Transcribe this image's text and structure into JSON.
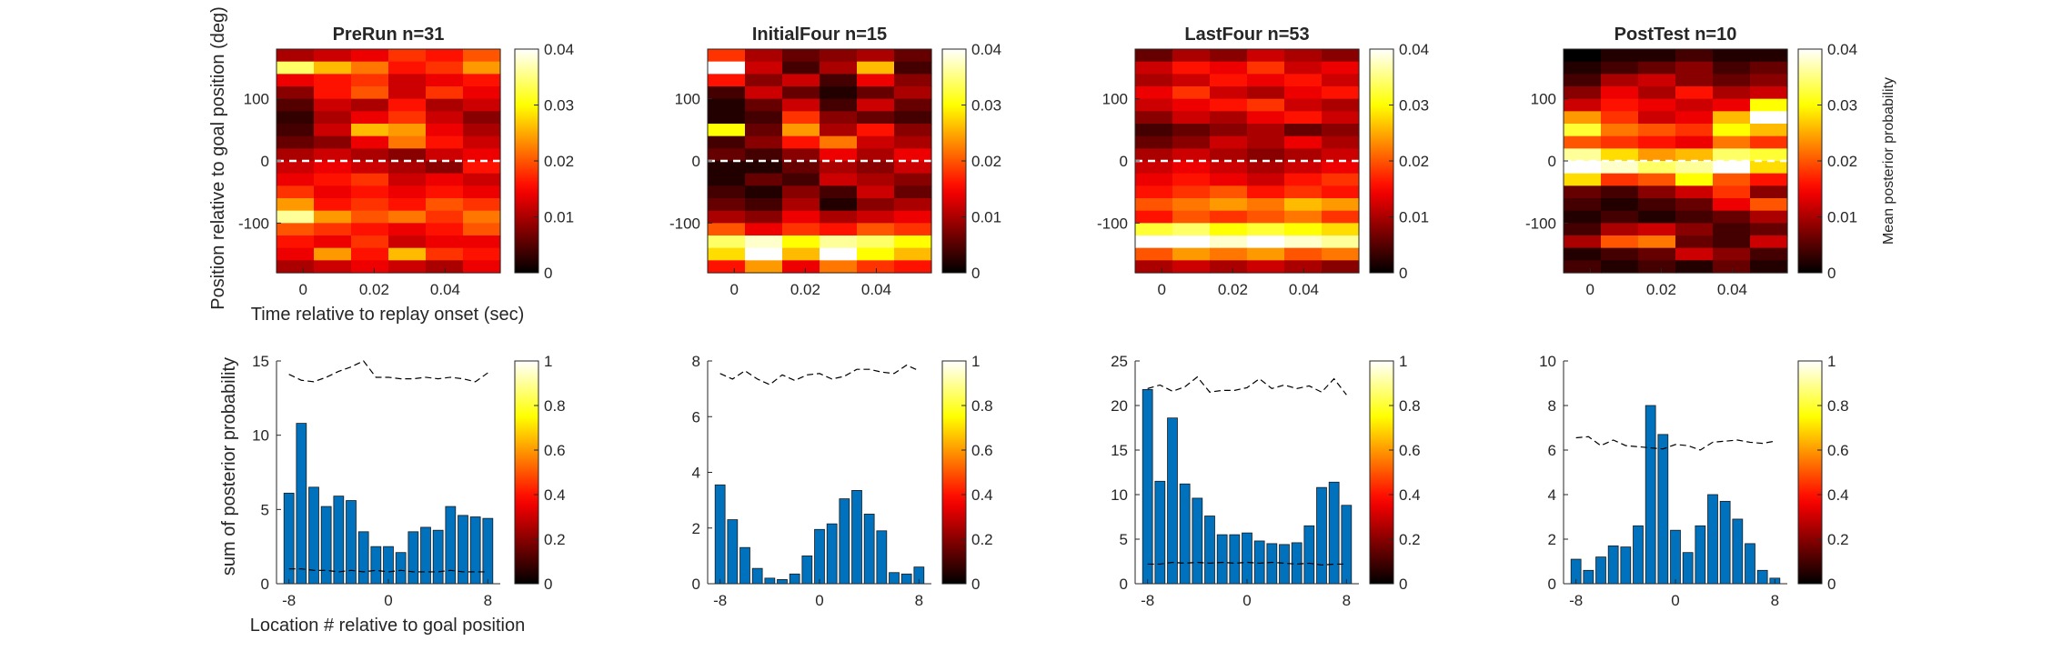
{
  "figure": {
    "heat_ylabel": "Position relative to goal position (deg)",
    "heat_xlabel": "Time relative to replay onset (sec)",
    "bar_ylabel": "sum of posterior probability",
    "bar_xlabel": "Location # relative to goal position",
    "heat_colorbar_label": "Mean posterior probability"
  },
  "colormap": "hot",
  "chart_data": [
    {
      "type": "heatmap",
      "title": "PreRun n=31",
      "x_ticks": [
        "0",
        "0.02",
        "0.04"
      ],
      "y_ticks": [
        "100",
        "0",
        "-100"
      ],
      "xlim": [
        -0.0075,
        0.0555
      ],
      "ylim": [
        -180,
        180
      ],
      "x_bins": [
        0,
        0.01,
        0.02,
        0.03,
        0.04,
        0.05
      ],
      "y_bin_centers": [
        170,
        150,
        130,
        110,
        90,
        70,
        50,
        30,
        10,
        -10,
        -30,
        -50,
        -70,
        -90,
        -110,
        -130,
        -150,
        -170
      ],
      "values": [
        [
          0.01,
          0.012,
          0.014,
          0.018,
          0.016,
          0.02
        ],
        [
          0.034,
          0.026,
          0.022,
          0.016,
          0.018,
          0.024
        ],
        [
          0.014,
          0.016,
          0.018,
          0.012,
          0.014,
          0.016
        ],
        [
          0.008,
          0.016,
          0.02,
          0.012,
          0.018,
          0.014
        ],
        [
          0.005,
          0.012,
          0.01,
          0.016,
          0.01,
          0.012
        ],
        [
          0.003,
          0.01,
          0.014,
          0.018,
          0.012,
          0.008
        ],
        [
          0.004,
          0.012,
          0.026,
          0.024,
          0.014,
          0.01
        ],
        [
          0.006,
          0.008,
          0.014,
          0.022,
          0.016,
          0.012
        ],
        [
          0.01,
          0.012,
          0.01,
          0.008,
          0.012,
          0.014
        ],
        [
          0.012,
          0.014,
          0.012,
          0.01,
          0.008,
          0.016
        ],
        [
          0.014,
          0.016,
          0.018,
          0.012,
          0.014,
          0.012
        ],
        [
          0.018,
          0.014,
          0.016,
          0.014,
          0.016,
          0.014
        ],
        [
          0.024,
          0.016,
          0.018,
          0.016,
          0.02,
          0.018
        ],
        [
          0.036,
          0.024,
          0.02,
          0.022,
          0.018,
          0.022
        ],
        [
          0.02,
          0.018,
          0.016,
          0.014,
          0.016,
          0.02
        ],
        [
          0.016,
          0.014,
          0.018,
          0.012,
          0.014,
          0.014
        ],
        [
          0.014,
          0.024,
          0.016,
          0.026,
          0.018,
          0.016
        ],
        [
          0.01,
          0.012,
          0.014,
          0.012,
          0.01,
          0.014
        ]
      ],
      "zlim": [
        0,
        0.04
      ],
      "colorbar_ticks": [
        "0",
        "0.01",
        "0.02",
        "0.03",
        "0.04"
      ],
      "reference_line_y": 0
    },
    {
      "type": "heatmap",
      "title": "InitialFour n=15",
      "x_ticks": [
        "0",
        "0.02",
        "0.04"
      ],
      "y_ticks": [
        "100",
        "0",
        "-100"
      ],
      "xlim": [
        -0.0075,
        0.0555
      ],
      "ylim": [
        -180,
        180
      ],
      "x_bins": [
        0,
        0.01,
        0.02,
        0.03,
        0.04,
        0.05
      ],
      "y_bin_centers": [
        170,
        150,
        130,
        110,
        90,
        70,
        50,
        30,
        10,
        -10,
        -30,
        -50,
        -70,
        -90,
        -110,
        -130,
        -150,
        -170
      ],
      "values": [
        [
          0.018,
          0.01,
          0.006,
          0.008,
          0.01,
          0.006
        ],
        [
          0.04,
          0.012,
          0.004,
          0.01,
          0.026,
          0.004
        ],
        [
          0.016,
          0.008,
          0.012,
          0.004,
          0.014,
          0.008
        ],
        [
          0.004,
          0.012,
          0.006,
          0.002,
          0.006,
          0.01
        ],
        [
          0.002,
          0.006,
          0.012,
          0.004,
          0.012,
          0.006
        ],
        [
          0.002,
          0.004,
          0.018,
          0.008,
          0.006,
          0.004
        ],
        [
          0.03,
          0.006,
          0.024,
          0.01,
          0.016,
          0.008
        ],
        [
          0.004,
          0.008,
          0.016,
          0.022,
          0.012,
          0.01
        ],
        [
          0.006,
          0.004,
          0.008,
          0.014,
          0.01,
          0.014
        ],
        [
          0.002,
          0.002,
          0.006,
          0.01,
          0.008,
          0.012
        ],
        [
          0.002,
          0.006,
          0.004,
          0.012,
          0.01,
          0.008
        ],
        [
          0.004,
          0.002,
          0.008,
          0.004,
          0.012,
          0.006
        ],
        [
          0.006,
          0.004,
          0.01,
          0.002,
          0.008,
          0.01
        ],
        [
          0.01,
          0.008,
          0.014,
          0.01,
          0.012,
          0.014
        ],
        [
          0.02,
          0.014,
          0.018,
          0.016,
          0.02,
          0.018
        ],
        [
          0.034,
          0.038,
          0.03,
          0.036,
          0.034,
          0.03
        ],
        [
          0.028,
          0.04,
          0.026,
          0.04,
          0.03,
          0.026
        ],
        [
          0.016,
          0.024,
          0.014,
          0.022,
          0.018,
          0.016
        ]
      ],
      "zlim": [
        0,
        0.04
      ],
      "colorbar_ticks": [
        "0",
        "0.01",
        "0.02",
        "0.03",
        "0.04"
      ],
      "reference_line_y": 0
    },
    {
      "type": "heatmap",
      "title": "LastFour n=53",
      "x_ticks": [
        "0",
        "0.02",
        "0.04"
      ],
      "y_ticks": [
        "100",
        "0",
        "-100"
      ],
      "xlim": [
        -0.0075,
        0.0555
      ],
      "ylim": [
        -180,
        180
      ],
      "x_bins": [
        0,
        0.01,
        0.02,
        0.03,
        0.04,
        0.05
      ],
      "y_bin_centers": [
        170,
        150,
        130,
        110,
        90,
        70,
        50,
        30,
        10,
        -10,
        -30,
        -50,
        -70,
        -90,
        -110,
        -130,
        -150,
        -170
      ],
      "values": [
        [
          0.006,
          0.01,
          0.008,
          0.012,
          0.01,
          0.008
        ],
        [
          0.012,
          0.016,
          0.014,
          0.018,
          0.012,
          0.014
        ],
        [
          0.01,
          0.012,
          0.016,
          0.014,
          0.016,
          0.012
        ],
        [
          0.014,
          0.018,
          0.012,
          0.01,
          0.014,
          0.016
        ],
        [
          0.012,
          0.014,
          0.016,
          0.018,
          0.012,
          0.01
        ],
        [
          0.008,
          0.012,
          0.01,
          0.014,
          0.016,
          0.012
        ],
        [
          0.004,
          0.006,
          0.008,
          0.01,
          0.006,
          0.008
        ],
        [
          0.006,
          0.008,
          0.012,
          0.01,
          0.014,
          0.01
        ],
        [
          0.01,
          0.012,
          0.01,
          0.008,
          0.01,
          0.012
        ],
        [
          0.012,
          0.014,
          0.012,
          0.01,
          0.012,
          0.014
        ],
        [
          0.014,
          0.016,
          0.014,
          0.012,
          0.016,
          0.018
        ],
        [
          0.016,
          0.018,
          0.02,
          0.016,
          0.018,
          0.016
        ],
        [
          0.02,
          0.022,
          0.024,
          0.022,
          0.026,
          0.024
        ],
        [
          0.016,
          0.02,
          0.018,
          0.02,
          0.022,
          0.018
        ],
        [
          0.032,
          0.034,
          0.03,
          0.032,
          0.03,
          0.028
        ],
        [
          0.04,
          0.04,
          0.038,
          0.04,
          0.038,
          0.036
        ],
        [
          0.02,
          0.024,
          0.022,
          0.024,
          0.02,
          0.022
        ],
        [
          0.01,
          0.012,
          0.01,
          0.012,
          0.01,
          0.008
        ]
      ],
      "zlim": [
        0,
        0.04
      ],
      "colorbar_ticks": [
        "0",
        "0.01",
        "0.02",
        "0.03",
        "0.04"
      ],
      "reference_line_y": 0
    },
    {
      "type": "heatmap",
      "title": "PostTest n=10",
      "x_ticks": [
        "0",
        "0.02",
        "0.04"
      ],
      "y_ticks": [
        "100",
        "0",
        "-100"
      ],
      "xlim": [
        -0.0075,
        0.0555
      ],
      "ylim": [
        -180,
        180
      ],
      "x_bins": [
        0,
        0.01,
        0.02,
        0.03,
        0.04,
        0.05
      ],
      "y_bin_centers": [
        170,
        150,
        130,
        110,
        90,
        70,
        50,
        30,
        10,
        -10,
        -30,
        -50,
        -70,
        -90,
        -110,
        -130,
        -150,
        -170
      ],
      "values": [
        [
          0.0,
          0.002,
          0.002,
          0.004,
          0.002,
          0.002
        ],
        [
          0.002,
          0.004,
          0.006,
          0.008,
          0.004,
          0.006
        ],
        [
          0.004,
          0.01,
          0.012,
          0.008,
          0.006,
          0.008
        ],
        [
          0.008,
          0.014,
          0.01,
          0.016,
          0.01,
          0.012
        ],
        [
          0.012,
          0.016,
          0.014,
          0.012,
          0.014,
          0.03
        ],
        [
          0.024,
          0.018,
          0.012,
          0.014,
          0.026,
          0.04
        ],
        [
          0.032,
          0.022,
          0.02,
          0.018,
          0.03,
          0.026
        ],
        [
          0.02,
          0.018,
          0.016,
          0.014,
          0.022,
          0.018
        ],
        [
          0.036,
          0.028,
          0.024,
          0.026,
          0.034,
          0.032
        ],
        [
          0.04,
          0.038,
          0.034,
          0.036,
          0.04,
          0.028
        ],
        [
          0.028,
          0.018,
          0.02,
          0.03,
          0.02,
          0.016
        ],
        [
          0.006,
          0.004,
          0.008,
          0.012,
          0.018,
          0.008
        ],
        [
          0.004,
          0.002,
          0.004,
          0.006,
          0.014,
          0.02
        ],
        [
          0.002,
          0.004,
          0.002,
          0.004,
          0.006,
          0.01
        ],
        [
          0.004,
          0.01,
          0.012,
          0.008,
          0.004,
          0.006
        ],
        [
          0.01,
          0.02,
          0.022,
          0.006,
          0.004,
          0.012
        ],
        [
          0.002,
          0.004,
          0.006,
          0.012,
          0.008,
          0.004
        ],
        [
          0.004,
          0.002,
          0.004,
          0.002,
          0.006,
          0.002
        ]
      ],
      "zlim": [
        0,
        0.04
      ],
      "colorbar_ticks": [
        "0",
        "0.01",
        "0.02",
        "0.03",
        "0.04"
      ],
      "reference_line_y": 0,
      "colorbar_label": "Mean posterior probability"
    },
    {
      "type": "bar",
      "x": [
        -8,
        -7,
        -6,
        -5,
        -4,
        -3,
        -2,
        -1,
        0,
        1,
        2,
        3,
        4,
        5,
        6,
        7,
        8
      ],
      "values": [
        6.1,
        10.8,
        6.5,
        5.2,
        5.9,
        5.6,
        3.5,
        2.5,
        2.5,
        2.1,
        3.5,
        3.8,
        3.6,
        5.2,
        4.6,
        4.5,
        4.4
      ],
      "upper_line": [
        14.1,
        13.7,
        13.6,
        13.9,
        14.3,
        14.6,
        15.0,
        13.9,
        13.9,
        13.8,
        13.8,
        13.9,
        13.8,
        13.9,
        13.8,
        13.6,
        14.2
      ],
      "lower_line": [
        1.0,
        1.0,
        0.9,
        0.9,
        0.8,
        0.9,
        0.8,
        0.9,
        0.8,
        0.9,
        0.8,
        0.8,
        0.8,
        0.9,
        0.8,
        0.8,
        0.8
      ],
      "x_ticks": [
        "-8",
        "0",
        "8"
      ],
      "y_ticks": [
        "0",
        "5",
        "10",
        "15"
      ],
      "xlim": [
        -9,
        9
      ],
      "ylim": [
        0,
        15
      ],
      "bar_color": "#0072BD",
      "colorbar_ticks": [
        "0",
        "0.2",
        "0.4",
        "0.6",
        "0.8",
        "1"
      ]
    },
    {
      "type": "bar",
      "x": [
        -8,
        -7,
        -6,
        -5,
        -4,
        -3,
        -2,
        -1,
        0,
        1,
        2,
        3,
        4,
        5,
        6,
        7,
        8
      ],
      "values": [
        3.55,
        2.3,
        1.3,
        0.55,
        0.2,
        0.15,
        0.35,
        1.0,
        1.95,
        2.15,
        3.05,
        3.35,
        2.5,
        1.9,
        0.4,
        0.35,
        0.6
      ],
      "upper_line": [
        7.55,
        7.35,
        7.65,
        7.35,
        7.15,
        7.5,
        7.3,
        7.5,
        7.55,
        7.35,
        7.45,
        7.7,
        7.7,
        7.6,
        7.55,
        7.85,
        7.65
      ],
      "x_ticks": [
        "-8",
        "0",
        "8"
      ],
      "y_ticks": [
        "0",
        "2",
        "4",
        "6",
        "8"
      ],
      "xlim": [
        -9,
        9
      ],
      "ylim": [
        0,
        8
      ],
      "bar_color": "#0072BD",
      "colorbar_ticks": [
        "0",
        "0.2",
        "0.4",
        "0.6",
        "0.8",
        "1"
      ]
    },
    {
      "type": "bar",
      "x": [
        -8,
        -7,
        -6,
        -5,
        -4,
        -3,
        -2,
        -1,
        0,
        1,
        2,
        3,
        4,
        5,
        6,
        7,
        8
      ],
      "values": [
        21.8,
        11.5,
        18.6,
        11.2,
        9.6,
        7.6,
        5.5,
        5.5,
        5.7,
        4.8,
        4.5,
        4.4,
        4.6,
        6.5,
        10.8,
        11.4,
        8.8
      ],
      "upper_line": [
        21.9,
        22.3,
        21.6,
        22.1,
        23.2,
        21.5,
        21.7,
        21.7,
        22.0,
        23.0,
        21.9,
        22.3,
        21.9,
        22.2,
        21.5,
        23.0,
        21.2
      ],
      "lower_line": [
        2.2,
        2.2,
        2.4,
        2.3,
        2.4,
        2.3,
        2.4,
        2.3,
        2.4,
        2.3,
        2.4,
        2.3,
        2.2,
        2.3,
        2.1,
        2.2,
        2.2
      ],
      "x_ticks": [
        "-8",
        "0",
        "8"
      ],
      "y_ticks": [
        "0",
        "5",
        "10",
        "15",
        "20",
        "25"
      ],
      "xlim": [
        -9,
        9
      ],
      "ylim": [
        0,
        25
      ],
      "bar_color": "#0072BD",
      "colorbar_ticks": [
        "0",
        "0.2",
        "0.4",
        "0.6",
        "0.8",
        "1"
      ]
    },
    {
      "type": "bar",
      "x": [
        -8,
        -7,
        -6,
        -5,
        -4,
        -3,
        -2,
        -1,
        0,
        1,
        2,
        3,
        4,
        5,
        6,
        7,
        8
      ],
      "values": [
        1.1,
        0.6,
        1.2,
        1.7,
        1.65,
        2.6,
        8.0,
        6.7,
        2.4,
        1.4,
        2.6,
        4.0,
        3.7,
        2.9,
        1.8,
        0.6,
        0.25
      ],
      "upper_line": [
        6.55,
        6.6,
        6.2,
        6.45,
        6.2,
        6.15,
        6.1,
        6.05,
        6.25,
        6.2,
        6.0,
        6.35,
        6.4,
        6.45,
        6.35,
        6.3,
        6.4
      ],
      "x_ticks": [
        "-8",
        "0",
        "8"
      ],
      "y_ticks": [
        "0",
        "2",
        "4",
        "6",
        "8",
        "10"
      ],
      "xlim": [
        -9,
        9
      ],
      "ylim": [
        0,
        10
      ],
      "bar_color": "#0072BD",
      "colorbar_ticks": [
        "0",
        "0.2",
        "0.4",
        "0.6",
        "0.8",
        "1"
      ]
    }
  ]
}
